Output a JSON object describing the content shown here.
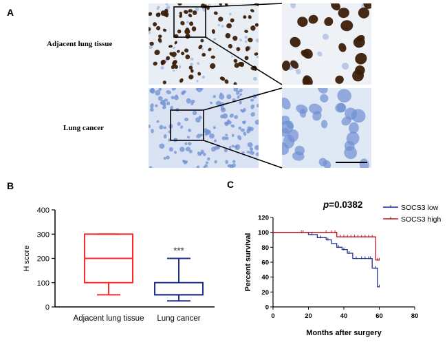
{
  "panels": {
    "a_letter": "A",
    "b_letter": "B",
    "c_letter": "C"
  },
  "panel_a": {
    "row_labels": [
      "Adjacent lung tissue",
      "Lung cancer"
    ],
    "colors": {
      "tissue_background": "#e6eef8",
      "positive_nuclei": "#3b1d08",
      "negative_nuclei": "#6f8fd1"
    }
  },
  "chart_data": [
    {
      "type": "box",
      "ylabel": "H score",
      "ylim": [
        0,
        400
      ],
      "yticks": [
        0,
        100,
        200,
        300,
        400
      ],
      "categories": [
        "Adjacent lung tissue",
        "Lung cancer"
      ],
      "boxes": [
        {
          "category": "Adjacent lung tissue",
          "min": 50,
          "q1": 100,
          "median": 200,
          "q3": 300,
          "max": 300,
          "color": "#ff2a2a"
        },
        {
          "category": "Lung cancer",
          "min": 25,
          "q1": 50,
          "median": 50,
          "q3": 100,
          "max": 200,
          "color": "#1f2f8f"
        }
      ],
      "annotation": "***"
    },
    {
      "type": "line",
      "subtype": "kaplan-meier",
      "annotation_prefix": "p",
      "annotation_value": "=0.0382",
      "xlabel": "Months after surgery",
      "ylabel": "Percent survival",
      "xlim": [
        0,
        80
      ],
      "ylim": [
        0,
        120
      ],
      "xticks": [
        0,
        20,
        40,
        60,
        80
      ],
      "yticks": [
        0,
        20,
        40,
        60,
        80,
        100,
        120
      ],
      "legend_position": "top-right",
      "series": [
        {
          "name": "SOCS3 low",
          "color": "#1f2f8f",
          "steps": [
            [
              0,
              100
            ],
            [
              20,
              100
            ],
            [
              20,
              97
            ],
            [
              25,
              97
            ],
            [
              25,
              93
            ],
            [
              30,
              93
            ],
            [
              30,
              90
            ],
            [
              33,
              90
            ],
            [
              33,
              85
            ],
            [
              36,
              85
            ],
            [
              36,
              80
            ],
            [
              39,
              80
            ],
            [
              39,
              77
            ],
            [
              42,
              77
            ],
            [
              42,
              72
            ],
            [
              45,
              72
            ],
            [
              45,
              65
            ],
            [
              56,
              65
            ],
            [
              56,
              52
            ],
            [
              59,
              52
            ],
            [
              59,
              27
            ],
            [
              60,
              27
            ]
          ],
          "censors": [
            [
              17,
              100
            ],
            [
              22,
              97
            ],
            [
              27,
              93
            ],
            [
              31,
              90
            ],
            [
              37,
              80
            ],
            [
              40,
              77
            ],
            [
              43,
              72
            ],
            [
              47,
              65
            ],
            [
              50,
              65
            ],
            [
              52,
              65
            ],
            [
              54,
              65
            ],
            [
              55,
              65
            ],
            [
              58,
              52
            ],
            [
              60,
              27
            ]
          ]
        },
        {
          "name": "SOCS3 high",
          "color": "#c0141c",
          "steps": [
            [
              0,
              100
            ],
            [
              36,
              100
            ],
            [
              36,
              94
            ],
            [
              58,
              94
            ],
            [
              58,
              63
            ],
            [
              60,
              63
            ]
          ],
          "censors": [
            [
              16,
              100
            ],
            [
              30,
              100
            ],
            [
              33,
              100
            ],
            [
              35,
              100
            ],
            [
              38,
              94
            ],
            [
              40,
              94
            ],
            [
              42,
              94
            ],
            [
              44,
              94
            ],
            [
              46,
              94
            ],
            [
              48,
              94
            ],
            [
              50,
              94
            ],
            [
              52,
              94
            ],
            [
              54,
              94
            ],
            [
              56,
              94
            ],
            [
              59,
              63
            ],
            [
              60,
              63
            ]
          ]
        }
      ]
    }
  ]
}
